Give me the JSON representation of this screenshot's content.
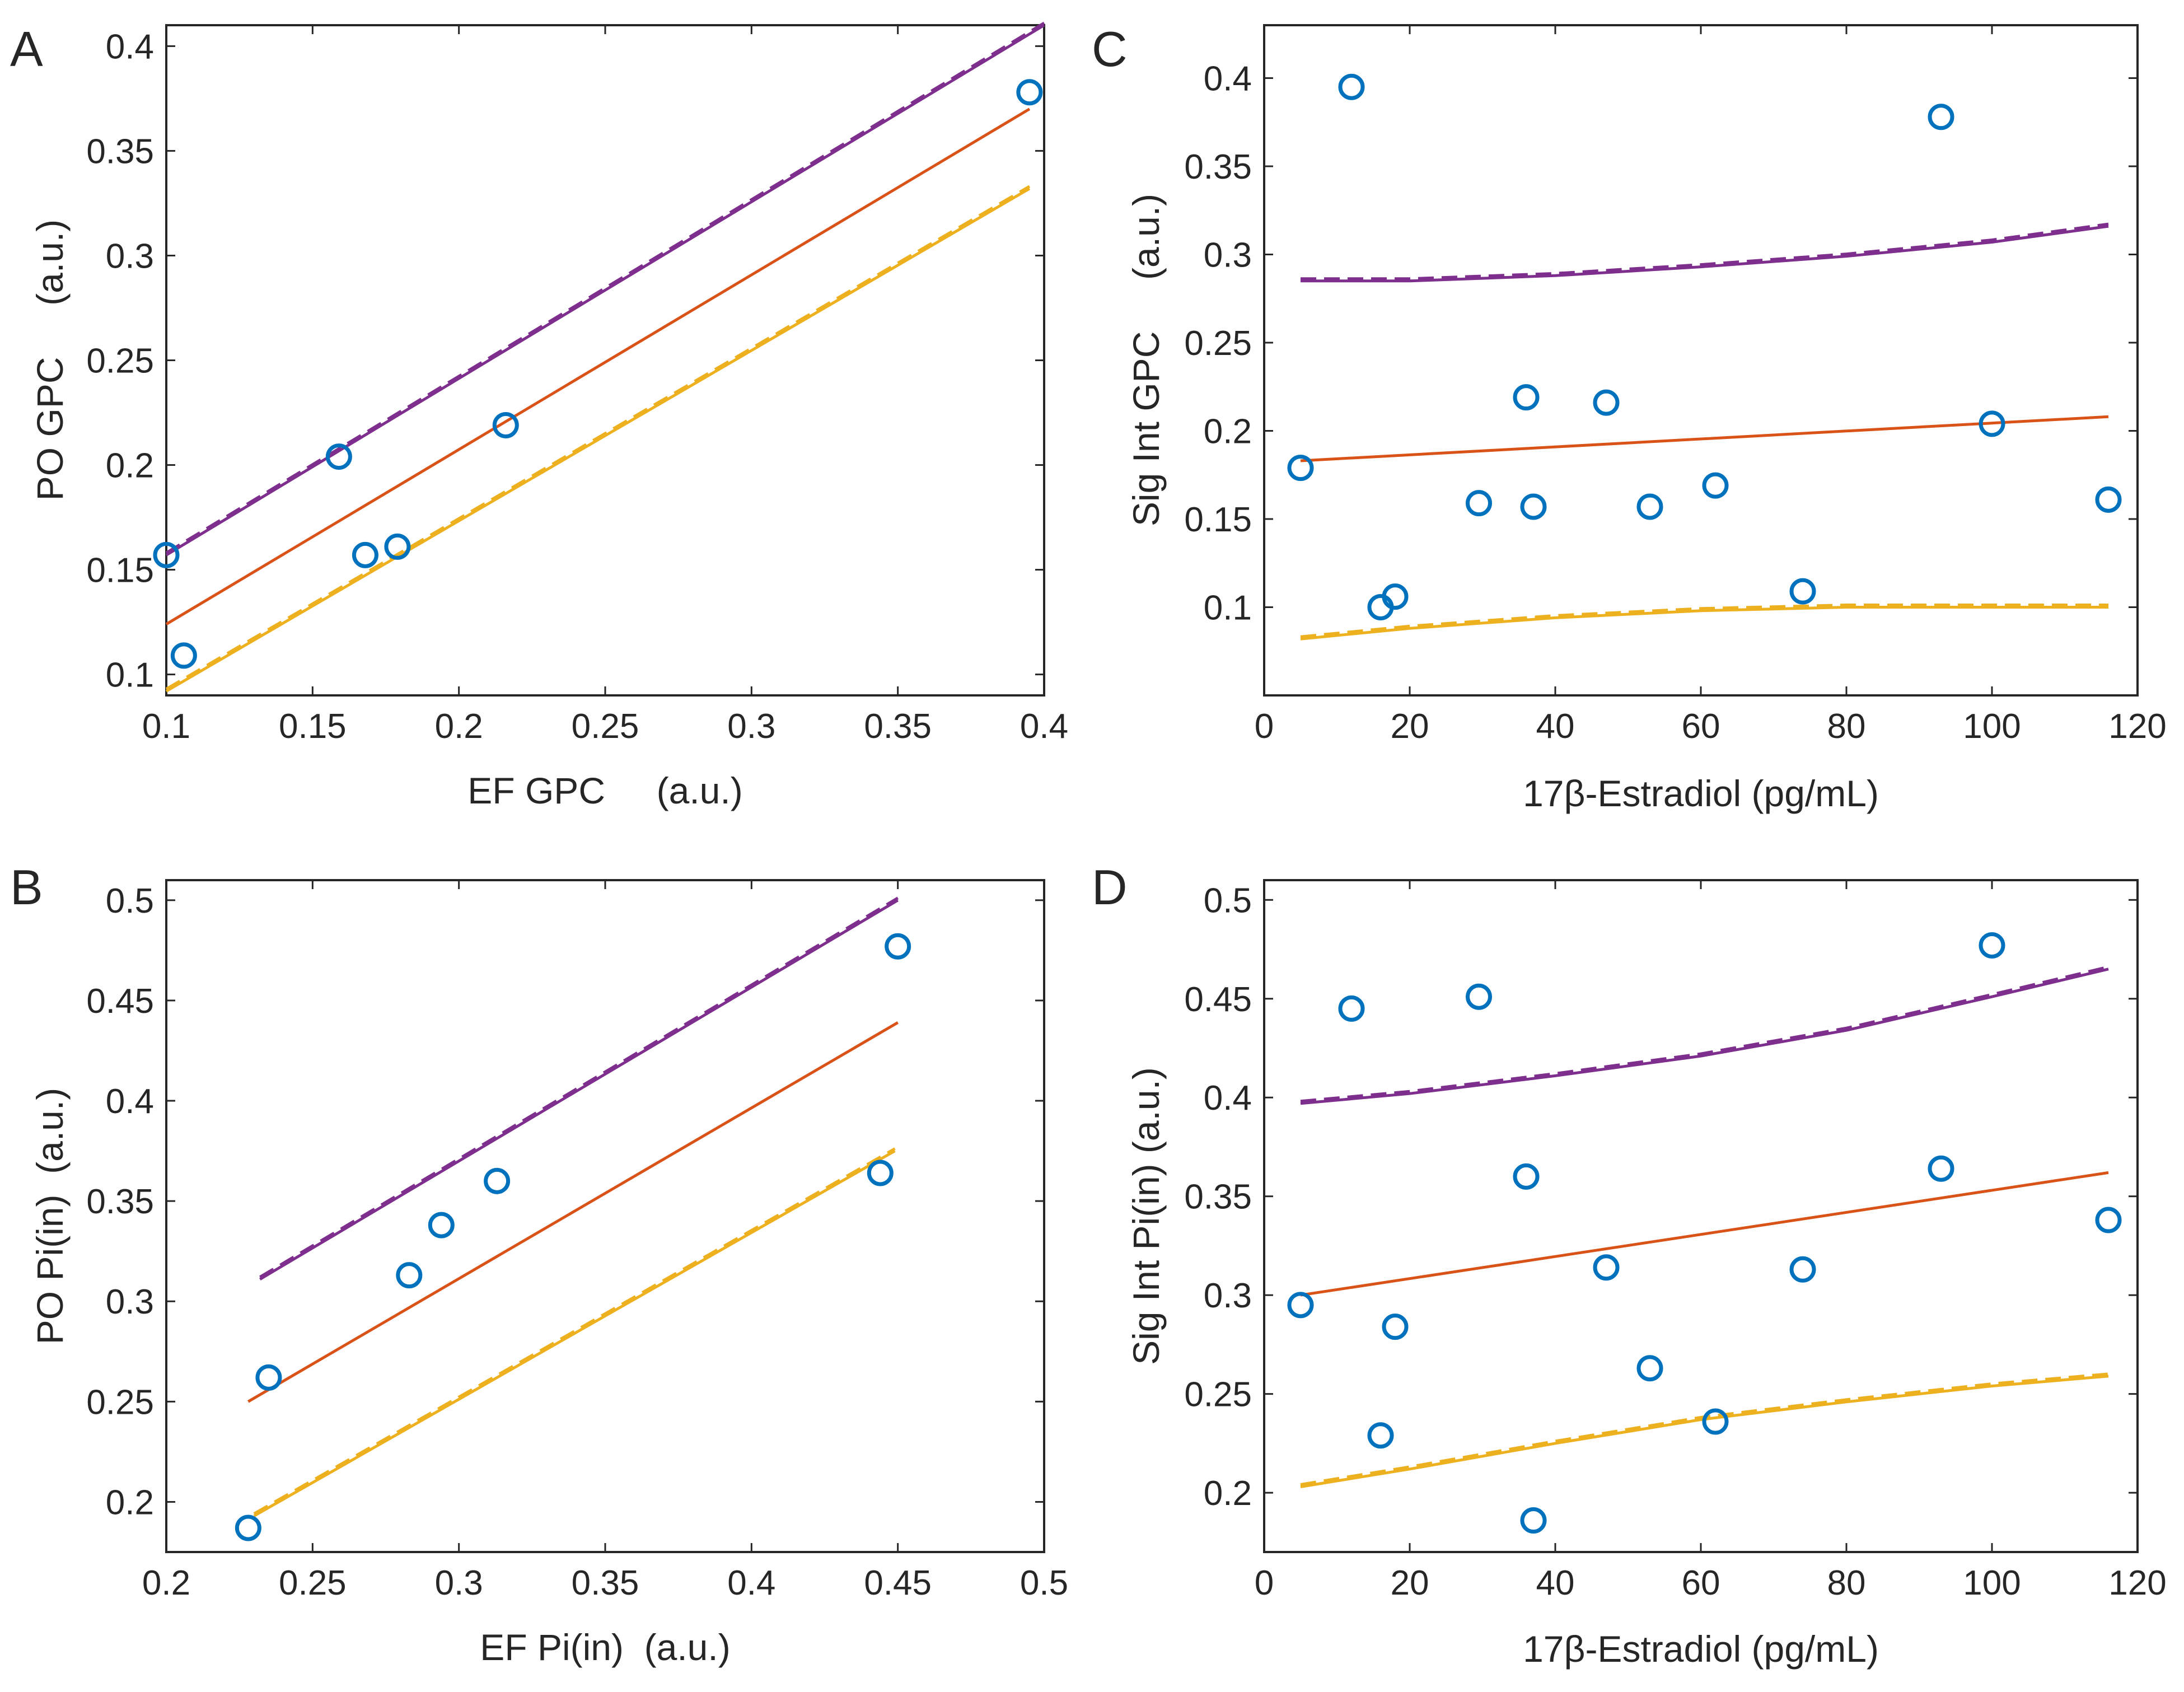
{
  "colors": {
    "points": "#0072BD",
    "fit": "#D95319",
    "upper": "#7E2F8E",
    "lower": "#EDB120",
    "axis": "#262626"
  },
  "chart_data": [
    {
      "panel": "A",
      "type": "scatter",
      "xlabel": "EF GPC     (a.u.)",
      "ylabel": "PO GPC     (a.u.)",
      "xlim": [
        0.1,
        0.4
      ],
      "ylim": [
        0.09,
        0.41
      ],
      "xticks": [
        0.1,
        0.15,
        0.2,
        0.25,
        0.3,
        0.35,
        0.4
      ],
      "xtick_labels": [
        "0.1",
        "0.15",
        "0.2",
        "0.25",
        "0.3",
        "0.35",
        "0.4"
      ],
      "yticks": [
        0.1,
        0.15,
        0.2,
        0.25,
        0.3,
        0.35,
        0.4
      ],
      "ytick_labels": [
        "0.1",
        "0.15",
        "0.2",
        "0.25",
        "0.3",
        "0.35",
        "0.4"
      ],
      "points": {
        "x": [
          0.1,
          0.106,
          0.159,
          0.168,
          0.179,
          0.216,
          0.395
        ],
        "y": [
          0.157,
          0.109,
          0.204,
          0.157,
          0.161,
          0.219,
          0.378
        ]
      },
      "fit": {
        "x": [
          0.1,
          0.395
        ],
        "y": [
          0.124,
          0.37
        ]
      },
      "upper": {
        "x": [
          0.1,
          0.4
        ],
        "y": [
          0.157,
          0.41
        ]
      },
      "lower": {
        "x": [
          0.1,
          0.395
        ],
        "y": [
          0.092,
          0.332
        ]
      }
    },
    {
      "panel": "B",
      "type": "scatter",
      "xlabel": "EF Pi(in)  (a.u.)",
      "ylabel": "PO Pi(in)  (a.u.)",
      "xlim": [
        0.2,
        0.5
      ],
      "ylim": [
        0.175,
        0.51
      ],
      "xticks": [
        0.2,
        0.25,
        0.3,
        0.35,
        0.4,
        0.45,
        0.5
      ],
      "xtick_labels": [
        "0.2",
        "0.25",
        "0.3",
        "0.35",
        "0.4",
        "0.45",
        "0.5"
      ],
      "yticks": [
        0.2,
        0.25,
        0.3,
        0.35,
        0.4,
        0.45,
        0.5
      ],
      "ytick_labels": [
        "0.2",
        "0.25",
        "0.3",
        "0.35",
        "0.4",
        "0.45",
        "0.5"
      ],
      "points": {
        "x": [
          0.228,
          0.235,
          0.283,
          0.294,
          0.313,
          0.444,
          0.45
        ],
        "y": [
          0.187,
          0.262,
          0.313,
          0.338,
          0.36,
          0.364,
          0.477
        ]
      },
      "fit": {
        "x": [
          0.228,
          0.45
        ],
        "y": [
          0.25,
          0.439
        ]
      },
      "upper": {
        "x": [
          0.232,
          0.45
        ],
        "y": [
          0.311,
          0.5
        ]
      },
      "lower": {
        "x": [
          0.23,
          0.449
        ],
        "y": [
          0.193,
          0.375
        ]
      }
    },
    {
      "panel": "C",
      "type": "scatter",
      "xlabel": "17β-Estradiol (pg/mL)",
      "ylabel": "Sig Int GPC     (a.u.)",
      "xlim": [
        0,
        120
      ],
      "ylim": [
        0.05,
        0.43
      ],
      "xticks": [
        0,
        20,
        40,
        60,
        80,
        100,
        120
      ],
      "xtick_labels": [
        "0",
        "20",
        "40",
        "60",
        "80",
        "100",
        "120"
      ],
      "yticks": [
        0.1,
        0.15,
        0.2,
        0.25,
        0.3,
        0.35,
        0.4
      ],
      "ytick_labels": [
        "0.1",
        "0.15",
        "0.2",
        "0.25",
        "0.3",
        "0.35",
        "0.4"
      ],
      "points": {
        "x": [
          5,
          12,
          16,
          18,
          29.5,
          36,
          37,
          47,
          53,
          62,
          74,
          93,
          100,
          116
        ],
        "y": [
          0.179,
          0.395,
          0.1,
          0.106,
          0.159,
          0.219,
          0.157,
          0.216,
          0.157,
          0.169,
          0.109,
          0.378,
          0.204,
          0.161
        ]
      },
      "fit": {
        "x": [
          5,
          116
        ],
        "y": [
          0.183,
          0.208
        ]
      },
      "upper": {
        "x": [
          5,
          20,
          40,
          60,
          80,
          100,
          116
        ],
        "y": [
          0.285,
          0.285,
          0.288,
          0.293,
          0.299,
          0.307,
          0.316
        ]
      },
      "lower": {
        "x": [
          5,
          20,
          40,
          60,
          80,
          100,
          116
        ],
        "y": [
          0.082,
          0.088,
          0.094,
          0.098,
          0.1,
          0.1,
          0.1
        ]
      }
    },
    {
      "panel": "D",
      "type": "scatter",
      "xlabel": "17β-Estradiol (pg/mL)",
      "ylabel": "Sig Int Pi(in) (a.u.)",
      "xlim": [
        0,
        120
      ],
      "ylim": [
        0.17,
        0.51
      ],
      "xticks": [
        0,
        20,
        40,
        60,
        80,
        100,
        120
      ],
      "xtick_labels": [
        "0",
        "20",
        "40",
        "60",
        "80",
        "100",
        "120"
      ],
      "yticks": [
        0.2,
        0.25,
        0.3,
        0.35,
        0.4,
        0.45,
        0.5
      ],
      "ytick_labels": [
        "0.2",
        "0.25",
        "0.3",
        "0.35",
        "0.4",
        "0.45",
        "0.5"
      ],
      "points": {
        "x": [
          5,
          12,
          16,
          18,
          29.5,
          36,
          37,
          47,
          53,
          62,
          74,
          93,
          100,
          116
        ],
        "y": [
          0.295,
          0.445,
          0.229,
          0.284,
          0.451,
          0.36,
          0.186,
          0.314,
          0.263,
          0.236,
          0.313,
          0.364,
          0.477,
          0.338
        ]
      },
      "fit": {
        "x": [
          5,
          116
        ],
        "y": [
          0.3,
          0.362
        ]
      },
      "upper": {
        "x": [
          5,
          20,
          40,
          60,
          80,
          100,
          116
        ],
        "y": [
          0.397,
          0.402,
          0.411,
          0.421,
          0.434,
          0.451,
          0.465
        ]
      },
      "lower": {
        "x": [
          5,
          20,
          40,
          60,
          80,
          100,
          116
        ],
        "y": [
          0.203,
          0.212,
          0.225,
          0.237,
          0.246,
          0.254,
          0.259
        ]
      }
    }
  ]
}
